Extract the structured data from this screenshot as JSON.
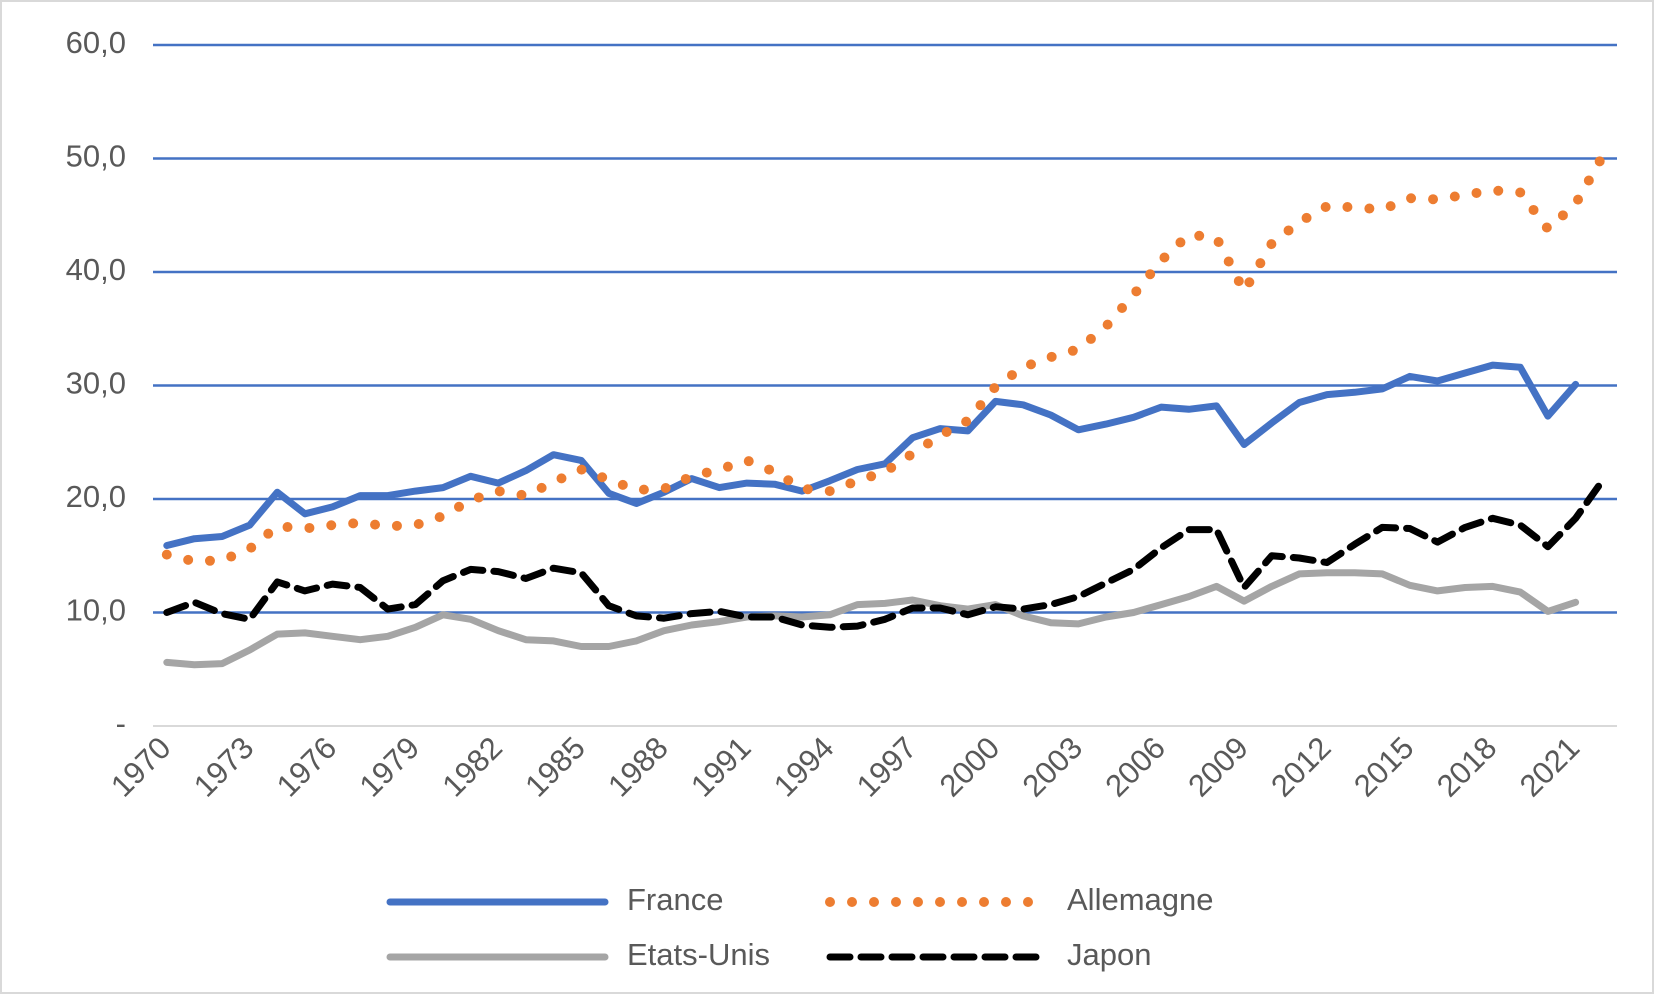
{
  "chart_data": {
    "type": "line",
    "x": [
      1970,
      1971,
      1972,
      1973,
      1974,
      1975,
      1976,
      1977,
      1978,
      1979,
      1980,
      1981,
      1982,
      1983,
      1984,
      1985,
      1986,
      1987,
      1988,
      1989,
      1990,
      1991,
      1992,
      1993,
      1994,
      1995,
      1996,
      1997,
      1998,
      1999,
      2000,
      2001,
      2002,
      2003,
      2004,
      2005,
      2006,
      2007,
      2008,
      2009,
      2010,
      2011,
      2012,
      2013,
      2014,
      2015,
      2016,
      2017,
      2018,
      2019,
      2020,
      2021,
      2022
    ],
    "xlim": [
      1969.5,
      2022.5
    ],
    "xticks": [
      1970,
      1973,
      1976,
      1979,
      1982,
      1985,
      1988,
      1991,
      1994,
      1997,
      2000,
      2003,
      2006,
      2009,
      2012,
      2015,
      2018,
      2021
    ],
    "ylim": [
      0,
      60
    ],
    "yticks": [
      {
        "value": 0,
        "label": "-"
      },
      {
        "value": 10,
        "label": "10,0"
      },
      {
        "value": 20,
        "label": "20,0"
      },
      {
        "value": 30,
        "label": "30,0"
      },
      {
        "value": 40,
        "label": "40,0"
      },
      {
        "value": 50,
        "label": "50,0"
      },
      {
        "value": 60,
        "label": "60,0"
      }
    ],
    "grid": true,
    "legend": "bottom",
    "series": [
      {
        "name": "France",
        "color": "#4472c4",
        "dash": "solid",
        "values": [
          15.9,
          16.5,
          16.7,
          17.7,
          20.6,
          18.7,
          19.3,
          20.3,
          20.3,
          20.7,
          21.0,
          22.0,
          21.4,
          22.5,
          23.9,
          23.4,
          20.5,
          19.6,
          20.6,
          21.8,
          21.0,
          21.4,
          21.3,
          20.7,
          21.6,
          22.6,
          23.1,
          25.4,
          26.2,
          26.0,
          28.6,
          28.3,
          27.4,
          26.1,
          26.6,
          27.2,
          28.1,
          27.9,
          28.2,
          24.8,
          26.7,
          28.5,
          29.2,
          29.4,
          29.7,
          30.8,
          30.4,
          31.1,
          31.8,
          31.6,
          27.3,
          30.1,
          null
        ]
      },
      {
        "name": "Allemagne",
        "color": "#ed7d31",
        "dash": "dot",
        "values": [
          15.1,
          14.5,
          14.6,
          15.6,
          17.6,
          17.4,
          17.7,
          17.9,
          17.6,
          17.7,
          18.5,
          19.9,
          20.7,
          20.3,
          21.5,
          22.6,
          21.7,
          20.8,
          20.9,
          22.0,
          22.6,
          23.4,
          22.4,
          20.9,
          20.7,
          21.6,
          22.4,
          24.0,
          25.6,
          26.9,
          29.9,
          31.6,
          32.5,
          33.2,
          35.2,
          38.0,
          41.0,
          43.3,
          43.0,
          38.3,
          42.5,
          44.4,
          45.8,
          45.7,
          45.5,
          46.5,
          46.4,
          46.8,
          47.2,
          47.0,
          43.8,
          46.0,
          50.3
        ]
      },
      {
        "name": "Etats-Unis",
        "color": "#a5a5a5",
        "dash": "solid",
        "values": [
          5.6,
          5.4,
          5.5,
          6.7,
          8.1,
          8.2,
          7.9,
          7.6,
          7.9,
          8.7,
          9.8,
          9.4,
          8.4,
          7.6,
          7.5,
          7.0,
          7.0,
          7.5,
          8.4,
          8.9,
          9.2,
          9.6,
          9.7,
          9.6,
          9.8,
          10.7,
          10.8,
          11.1,
          10.6,
          10.3,
          10.7,
          9.7,
          9.1,
          9.0,
          9.6,
          10.0,
          10.7,
          11.4,
          12.3,
          11.0,
          12.3,
          13.4,
          13.5,
          13.5,
          13.4,
          12.4,
          11.9,
          12.2,
          12.3,
          11.8,
          10.1,
          10.9,
          null
        ]
      },
      {
        "name": "Japon",
        "color": "#000000",
        "dash": "dash",
        "values": [
          10.0,
          10.9,
          9.9,
          9.4,
          12.7,
          11.9,
          12.5,
          12.2,
          10.3,
          10.7,
          12.8,
          13.8,
          13.6,
          13.0,
          13.9,
          13.5,
          10.6,
          9.7,
          9.5,
          9.9,
          10.1,
          9.6,
          9.6,
          8.9,
          8.7,
          8.8,
          9.4,
          10.4,
          10.4,
          9.8,
          10.5,
          10.3,
          10.7,
          11.4,
          12.6,
          13.8,
          15.7,
          17.3,
          17.3,
          12.2,
          15.0,
          14.8,
          14.4,
          16.0,
          17.5,
          17.4,
          16.2,
          17.5,
          18.3,
          17.7,
          15.8,
          18.3,
          21.7
        ]
      }
    ]
  }
}
